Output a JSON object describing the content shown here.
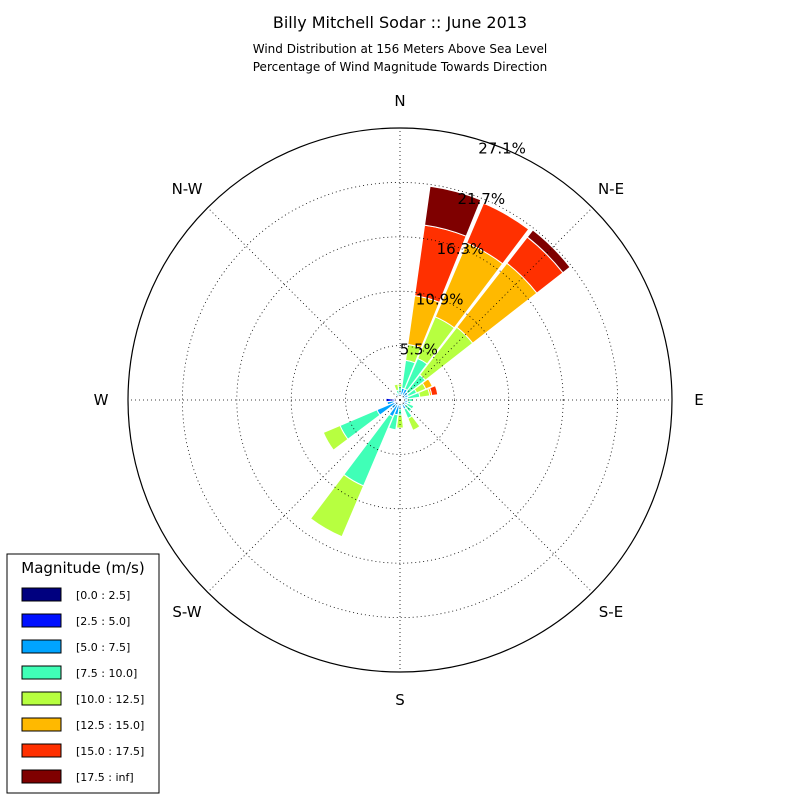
{
  "chart_data": {
    "type": "windrose",
    "title": "Billy Mitchell Sodar :: June 2013",
    "subtitle_lines": [
      "Wind Distribution at 156 Meters Above Sea Level",
      "Percentage of Wind Magnitude Towards Direction"
    ],
    "directions": [
      "N",
      "N-E",
      "E",
      "S-E",
      "S",
      "S-W",
      "W",
      "N-W"
    ],
    "ring_labels": [
      "5.5%",
      "10.9%",
      "16.3%",
      "21.7%",
      "27.1%"
    ],
    "ring_values": [
      5.42,
      10.84,
      16.26,
      21.68,
      27.1
    ],
    "max_value": 27.1,
    "sector_width_deg": 14,
    "legend": {
      "title": "Magnitude (m/s)",
      "placement": "lower-left",
      "entries": [
        {
          "label": "[0.0 : 2.5]",
          "color": "#00007f"
        },
        {
          "label": "[2.5 : 5.0]",
          "color": "#0010ff"
        },
        {
          "label": "[5.0 : 7.5]",
          "color": "#00a4ff"
        },
        {
          "label": "[7.5 : 10.0]",
          "color": "#40ffb7"
        },
        {
          "label": "[10.0 : 12.5]",
          "color": "#b7ff40"
        },
        {
          "label": "[12.5 : 15.0]",
          "color": "#ffb900"
        },
        {
          "label": "[15.0 : 17.5]",
          "color": "#ff3000"
        },
        {
          "label": "[17.5 : inf]",
          "color": "#7f0000"
        }
      ]
    },
    "sectors": [
      {
        "direction_deg": 0,
        "cumulative": [
          0.2,
          0.4,
          0.8,
          1.3,
          1.6,
          1.6,
          1.6,
          1.6
        ]
      },
      {
        "direction_deg": 15,
        "cumulative": [
          0.2,
          0.5,
          1.2,
          4.0,
          5.6,
          10.5,
          17.6,
          21.5
        ]
      },
      {
        "direction_deg": 30,
        "cumulative": [
          0.2,
          0.5,
          1.2,
          4.5,
          9.0,
          17.0,
          21.3,
          21.3
        ]
      },
      {
        "direction_deg": 45,
        "cumulative": [
          0.2,
          0.4,
          1.0,
          3.2,
          9.2,
          17.3,
          20.6,
          21.5
        ]
      },
      {
        "direction_deg": 60,
        "cumulative": [
          0.2,
          0.4,
          0.9,
          1.8,
          2.8,
          3.5,
          3.5,
          3.5
        ]
      },
      {
        "direction_deg": 75,
        "cumulative": [
          0.2,
          0.4,
          0.8,
          2.0,
          3.0,
          3.2,
          3.8,
          3.8
        ]
      },
      {
        "direction_deg": 90,
        "cumulative": [
          0.2,
          0.4,
          0.7,
          1.3,
          1.3,
          1.3,
          1.3,
          1.3
        ]
      },
      {
        "direction_deg": 105,
        "cumulative": [
          0.2,
          0.4,
          0.8,
          1.1,
          1.1,
          1.1,
          1.1,
          1.1
        ]
      },
      {
        "direction_deg": 120,
        "cumulative": [
          0.2,
          0.4,
          0.8,
          1.5,
          1.5,
          1.5,
          1.5,
          1.5
        ]
      },
      {
        "direction_deg": 135,
        "cumulative": [
          0.2,
          0.3,
          0.7,
          1.5,
          1.5,
          1.5,
          1.5,
          1.5
        ]
      },
      {
        "direction_deg": 150,
        "cumulative": [
          0.2,
          0.4,
          1.0,
          2.0,
          3.3,
          3.3,
          3.3,
          3.3
        ]
      },
      {
        "direction_deg": 165,
        "cumulative": [
          0.1,
          0.2,
          0.3,
          0.6,
          0.6,
          0.6,
          0.6,
          0.6
        ]
      },
      {
        "direction_deg": 180,
        "cumulative": [
          0.2,
          0.5,
          0.9,
          1.5,
          2.8,
          2.8,
          2.8,
          2.8
        ]
      },
      {
        "direction_deg": 195,
        "cumulative": [
          0.2,
          0.5,
          1.5,
          3.0,
          3.0,
          3.0,
          3.0,
          3.0
        ]
      },
      {
        "direction_deg": 210,
        "cumulative": [
          0.2,
          0.5,
          1.8,
          9.3,
          14.8,
          14.8,
          14.8,
          14.8
        ]
      },
      {
        "direction_deg": 225,
        "cumulative": [
          0.2,
          0.4,
          1.1,
          1.2,
          1.2,
          1.2,
          1.2,
          1.2
        ]
      },
      {
        "direction_deg": 240,
        "cumulative": [
          0.2,
          0.6,
          2.5,
          6.5,
          8.3,
          8.3,
          8.3,
          8.3
        ]
      },
      {
        "direction_deg": 255,
        "cumulative": [
          0.2,
          0.6,
          1.3,
          1.3,
          1.3,
          1.3,
          1.3,
          1.3
        ]
      },
      {
        "direction_deg": 270,
        "cumulative": [
          0.2,
          1.4,
          1.4,
          1.4,
          1.4,
          1.4,
          1.4,
          1.4
        ]
      },
      {
        "direction_deg": 285,
        "cumulative": [
          0.2,
          0.6,
          0.6,
          0.6,
          0.6,
          0.6,
          0.6,
          0.6
        ]
      },
      {
        "direction_deg": 300,
        "cumulative": [
          0.2,
          0.4,
          0.4,
          0.4,
          0.4,
          0.4,
          0.4,
          0.4
        ]
      },
      {
        "direction_deg": 315,
        "cumulative": [
          0.2,
          0.4,
          0.4,
          0.4,
          0.4,
          0.4,
          0.4,
          0.4
        ]
      },
      {
        "direction_deg": 330,
        "cumulative": [
          0.2,
          0.4,
          0.7,
          0.7,
          0.7,
          0.7,
          0.7,
          0.7
        ]
      },
      {
        "direction_deg": 345,
        "cumulative": [
          0.2,
          0.4,
          0.6,
          1.0,
          1.6,
          1.6,
          1.6,
          1.6
        ]
      }
    ]
  }
}
